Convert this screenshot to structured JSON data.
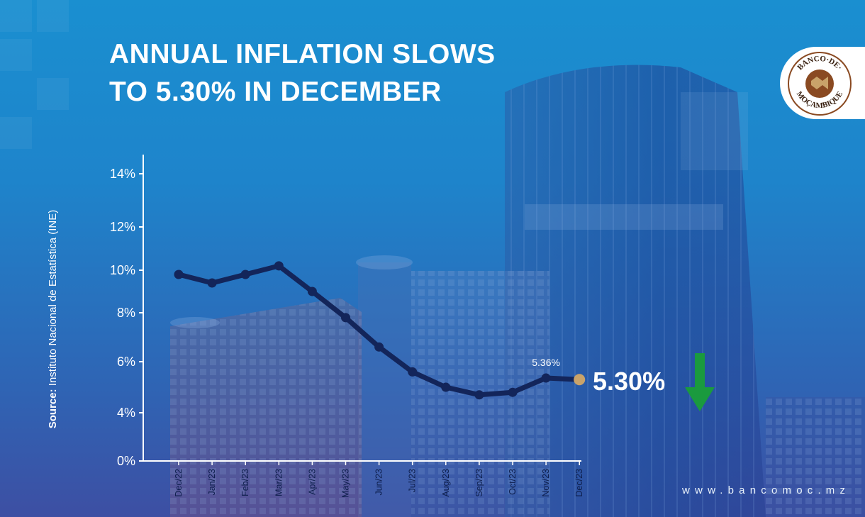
{
  "title_line1": "ANNUAL INFLATION SLOWS",
  "title_line2": "TO 5.30% IN DECEMBER",
  "source_label": "Source:",
  "source_text": "Instituto Nacional de Estatística (INE)",
  "website": "www.bancomoc.mz",
  "big_value": "5.30%",
  "logo_text_top": "BANCO·DE·",
  "logo_text_bottom": "MOÇAMBIQUE",
  "colors": {
    "line": "#13255a",
    "last_point": "#c9a36a",
    "arrow": "#1a9a3e",
    "text": "#ffffff"
  },
  "icons": [
    "down-arrow-icon",
    "bank-logo-icon"
  ],
  "chart_data": {
    "type": "line",
    "title": "ANNUAL INFLATION SLOWS TO 5.30% IN DECEMBER",
    "categories": [
      "Dec/22",
      "Jan/23",
      "Feb/23",
      "Mar/23",
      "Apr/23",
      "May/23",
      "Jun/23",
      "Jul/23",
      "Aug/23",
      "Sep/23",
      "Oct/23",
      "Nov/23",
      "Dec/23"
    ],
    "series": [
      {
        "values": [
          9.8,
          9.4,
          9.8,
          10.2,
          9.0,
          7.8,
          6.6,
          5.6,
          5.0,
          4.7,
          4.8,
          5.36,
          5.3
        ]
      }
    ],
    "y_ticks": [
      0,
      4,
      6,
      8,
      10,
      12,
      14
    ],
    "y_tick_labels": [
      "0%",
      "4%",
      "6%",
      "8%",
      "10%",
      "12%",
      "14%"
    ],
    "data_labels": [
      {
        "index": 11,
        "text": "5.36%"
      }
    ],
    "highlight": {
      "index": 12,
      "text": "5.30%"
    },
    "grid": false,
    "ylim": [
      0,
      14
    ]
  }
}
